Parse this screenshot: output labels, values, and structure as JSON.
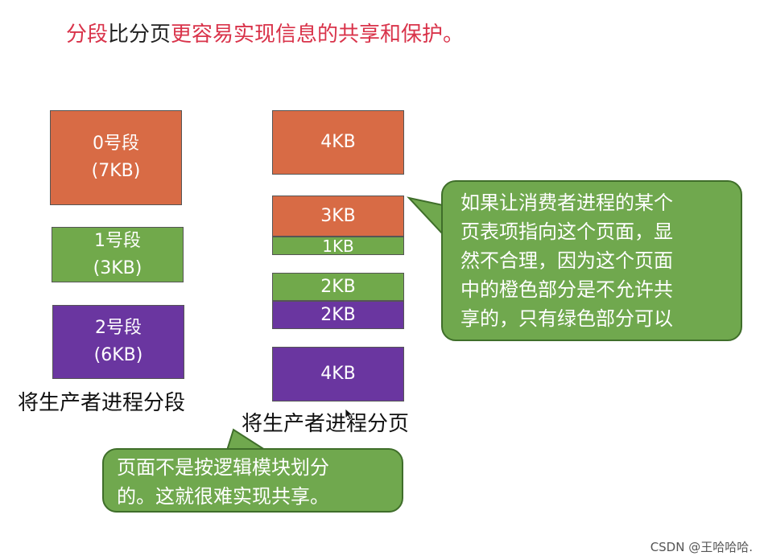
{
  "title": {
    "part1": "分段",
    "part2": "比分页",
    "part3": "更容易实现信息的共享和保护。"
  },
  "segments": [
    {
      "name": "0号段",
      "size": "(7KB)",
      "color": "#d86b45"
    },
    {
      "name": "1号段",
      "size": "(3KB)",
      "color": "#71a94b"
    },
    {
      "name": "2号段",
      "size": "(6KB)",
      "color": "#6a36a0"
    }
  ],
  "segments_caption": "将生产者进程分段",
  "pages": [
    {
      "parts": [
        {
          "label": "4KB",
          "color": "#d86b45"
        }
      ]
    },
    {
      "parts": [
        {
          "label": "3KB",
          "color": "#d86b45"
        },
        {
          "label": "1KB",
          "color": "#71a94b"
        }
      ]
    },
    {
      "parts": [
        {
          "label": "2KB",
          "color": "#71a94b"
        },
        {
          "label": "2KB",
          "color": "#6a36a0"
        }
      ]
    },
    {
      "parts": [
        {
          "label": "4KB",
          "color": "#6a36a0"
        }
      ]
    }
  ],
  "pages_caption": "将生产者进程分页",
  "callout_right": {
    "lines": [
      "如果让消费者进程的某个",
      "页表项指向这个页面，显",
      "然不合理，因为这个页面",
      "中的橙色部分是不允许共",
      "享的，只有绿色部分可以"
    ]
  },
  "callout_bottom": {
    "lines": [
      "页面不是按逻辑模块划分",
      "的。这就很难实现共享。"
    ]
  },
  "footer": "CSDN @王哈哈哈."
}
